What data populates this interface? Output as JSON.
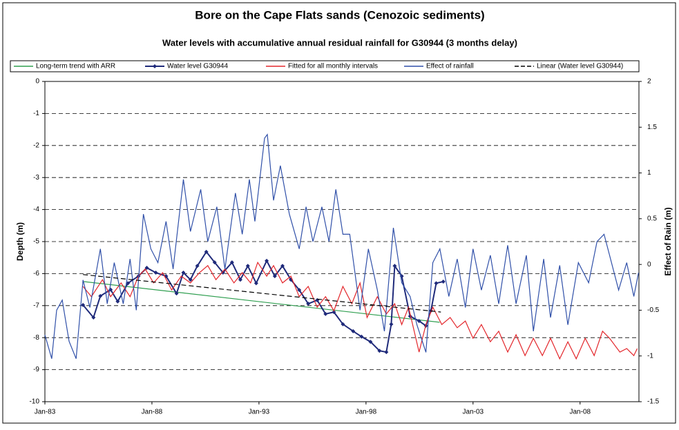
{
  "chart_data": {
    "type": "line",
    "title": "Bore on the Cape Flats sands (Cenozoic sediments)",
    "subtitle": "Water levels with accumulative annual residual rainfall for G30944 (3 months delay)",
    "y_label": "Depth (m)",
    "y2_label": "Effect of Rain (m)",
    "xlim": [
      1983,
      2010.75
    ],
    "xticks": [
      {
        "value": 1983,
        "label": "Jan-83"
      },
      {
        "value": 1988,
        "label": "Jan-88"
      },
      {
        "value": 1993,
        "label": "Jan-93"
      },
      {
        "value": 1998,
        "label": "Jan-98"
      },
      {
        "value": 2003,
        "label": "Jan-03"
      },
      {
        "value": 2008,
        "label": "Jan-08"
      }
    ],
    "ylim": [
      -10,
      0
    ],
    "yticks": [
      0,
      -1,
      -2,
      -3,
      -4,
      -5,
      -6,
      -7,
      -8,
      -9,
      -10
    ],
    "y2lim": [
      -1.5,
      2
    ],
    "y2ticks": [
      2,
      1.5,
      1,
      0.5,
      0,
      -0.5,
      -1,
      -1.5
    ],
    "grid": true,
    "legend": "top",
    "series": [
      {
        "name": "Long-term trend with ARR",
        "color": "#2e9e4f",
        "x": [
          1984.82,
          2001.44
        ],
        "values": [
          -6.25,
          -7.52
        ]
      },
      {
        "name": "Water level G30944",
        "color": "#1f2a7a",
        "marker": "diamond",
        "x": [
          1984.78,
          1985.27,
          1985.59,
          1986.07,
          1986.4,
          1986.88,
          1987.37,
          1987.76,
          1988.18,
          1988.66,
          1989.15,
          1989.47,
          1989.8,
          1990.12,
          1990.54,
          1990.93,
          1991.32,
          1991.74,
          1992.13,
          1992.48,
          1992.87,
          1993.36,
          1993.74,
          1994.1,
          1994.49,
          1994.88,
          1995.3,
          1995.72,
          1996.11,
          1996.5,
          1996.92,
          1997.4,
          1997.79,
          1998.21,
          1998.63,
          1998.95,
          1999.18,
          1999.34,
          1999.67,
          2000.06,
          2000.48,
          2000.8,
          2001.03,
          2001.28,
          2001.61
        ],
        "values": [
          -6.98,
          -7.37,
          -6.7,
          -6.5,
          -6.87,
          -6.3,
          -6.08,
          -5.82,
          -5.97,
          -6.08,
          -6.62,
          -5.97,
          -6.19,
          -5.76,
          -5.32,
          -5.65,
          -5.97,
          -5.65,
          -6.19,
          -5.76,
          -6.3,
          -5.6,
          -6.08,
          -5.76,
          -6.19,
          -6.51,
          -6.94,
          -6.83,
          -7.26,
          -7.2,
          -7.58,
          -7.8,
          -7.97,
          -8.13,
          -8.41,
          -8.45,
          -7.58,
          -5.76,
          -6.08,
          -7.33,
          -7.48,
          -7.63,
          -7.16,
          -6.3,
          -6.25
        ]
      },
      {
        "name": "Fitted for all monthly intervals",
        "color": "#e3262b",
        "x": [
          1984.78,
          1985.17,
          1985.69,
          1986.07,
          1986.56,
          1986.98,
          1987.37,
          1987.69,
          1988.08,
          1988.5,
          1988.92,
          1989.37,
          1989.8,
          1990.22,
          1990.61,
          1990.99,
          1991.41,
          1991.83,
          1992.22,
          1992.61,
          1992.94,
          1993.36,
          1993.68,
          1994.1,
          1994.49,
          1994.88,
          1995.3,
          1995.72,
          1996.11,
          1996.5,
          1996.92,
          1997.34,
          1997.72,
          1998.05,
          1998.53,
          1998.95,
          1999.34,
          1999.67,
          1999.99,
          2000.48,
          2000.8,
          2001.12,
          2001.54,
          2001.93,
          2002.26,
          2002.64,
          2003.0,
          2003.39,
          2003.81,
          2004.2,
          2004.62,
          2005.01,
          2005.43,
          2005.82,
          2006.24,
          2006.62,
          2007.05,
          2007.43,
          2007.82,
          2008.24,
          2008.66,
          2009.05,
          2009.38,
          2009.86,
          2010.18,
          2010.51,
          2010.67
        ],
        "values": [
          -6.4,
          -6.72,
          -6.19,
          -6.72,
          -6.29,
          -6.72,
          -6.08,
          -5.86,
          -6.29,
          -5.97,
          -6.51,
          -6.08,
          -6.29,
          -5.97,
          -5.75,
          -6.19,
          -5.86,
          -6.29,
          -5.97,
          -6.29,
          -5.65,
          -6.08,
          -5.75,
          -6.29,
          -6.08,
          -6.72,
          -6.4,
          -7.05,
          -6.72,
          -7.16,
          -6.4,
          -6.94,
          -6.29,
          -7.37,
          -6.72,
          -7.26,
          -6.94,
          -7.59,
          -7.05,
          -8.45,
          -7.59,
          -7.05,
          -7.59,
          -7.37,
          -7.69,
          -7.48,
          -8.02,
          -7.59,
          -8.13,
          -7.8,
          -8.45,
          -7.91,
          -8.56,
          -8.02,
          -8.56,
          -8.02,
          -8.66,
          -8.13,
          -8.66,
          -8.02,
          -8.56,
          -7.8,
          -8.02,
          -8.45,
          -8.34,
          -8.56,
          -8.34
        ]
      },
      {
        "name": "Effect of rainfall",
        "color": "#2f4fa8",
        "axis": "y2",
        "x": [
          1983.0,
          1983.32,
          1983.55,
          1983.81,
          1984.13,
          1984.46,
          1984.78,
          1985.1,
          1985.59,
          1985.91,
          1986.24,
          1986.66,
          1986.98,
          1987.27,
          1987.6,
          1987.95,
          1988.28,
          1988.66,
          1988.99,
          1989.47,
          1989.8,
          1990.28,
          1990.61,
          1991.03,
          1991.41,
          1991.9,
          1992.22,
          1992.55,
          1992.81,
          1993.26,
          1993.39,
          1993.68,
          1994.0,
          1994.42,
          1994.88,
          1995.2,
          1995.52,
          1995.94,
          1996.27,
          1996.59,
          1996.92,
          1997.24,
          1997.72,
          1998.11,
          1998.53,
          1998.86,
          1999.28,
          1999.67,
          2000.06,
          2000.38,
          2000.8,
          2001.12,
          2001.45,
          2001.87,
          2002.26,
          2002.64,
          2003.0,
          2003.39,
          2003.81,
          2004.2,
          2004.62,
          2005.01,
          2005.49,
          2005.82,
          2006.3,
          2006.62,
          2007.05,
          2007.43,
          2007.92,
          2008.4,
          2008.79,
          2009.12,
          2009.38,
          2009.8,
          2010.18,
          2010.51,
          2010.73
        ],
        "values": [
          -0.77,
          -1.03,
          -0.5,
          -0.39,
          -0.84,
          -1.03,
          -0.17,
          -0.47,
          0.17,
          -0.43,
          0.02,
          -0.43,
          0.06,
          -0.5,
          0.55,
          0.17,
          0.02,
          0.47,
          -0.05,
          0.93,
          0.36,
          0.82,
          0.25,
          0.63,
          -0.05,
          0.78,
          0.33,
          0.93,
          0.47,
          1.38,
          1.42,
          0.7,
          1.08,
          0.55,
          0.17,
          0.63,
          0.25,
          0.63,
          0.25,
          0.82,
          0.33,
          0.33,
          -0.5,
          0.17,
          -0.28,
          -0.73,
          0.4,
          -0.2,
          -0.35,
          -0.66,
          -0.96,
          0.02,
          0.17,
          -0.35,
          0.06,
          -0.47,
          0.17,
          -0.28,
          0.1,
          -0.43,
          0.21,
          -0.43,
          0.1,
          -0.73,
          0.06,
          -0.58,
          -0.01,
          -0.66,
          0.02,
          -0.2,
          0.25,
          0.33,
          0.1,
          -0.28,
          0.02,
          -0.35,
          -0.09
        ]
      },
      {
        "name": "Linear (Water level G30944)",
        "color": "#000000",
        "dash": true,
        "x": [
          1984.78,
          2001.5
        ],
        "values": [
          -6.03,
          -7.2
        ]
      }
    ]
  }
}
